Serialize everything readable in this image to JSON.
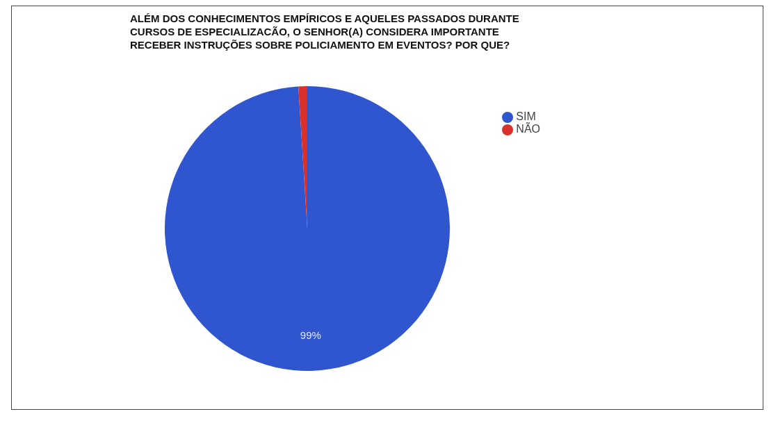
{
  "chart_data": {
    "type": "pie",
    "title": "ALÉM DOS CONHECIMENTOS EMPÍRICOS E AQUELES PASSADOS DURANTE CURSOS DE ESPECIALIZACÃO, O SENHOR(A) CONSIDERA IMPORTANTE RECEBER INSTRUÇÕES SOBRE POLICIAMENTO EM EVENTOS? POR QUE?",
    "categories": [
      "SIM",
      "NÃO"
    ],
    "values": [
      99,
      1
    ],
    "colors": [
      "#2f55cf",
      "#d8302a"
    ],
    "value_labels": [
      "99%",
      null
    ],
    "legend": "top right"
  }
}
